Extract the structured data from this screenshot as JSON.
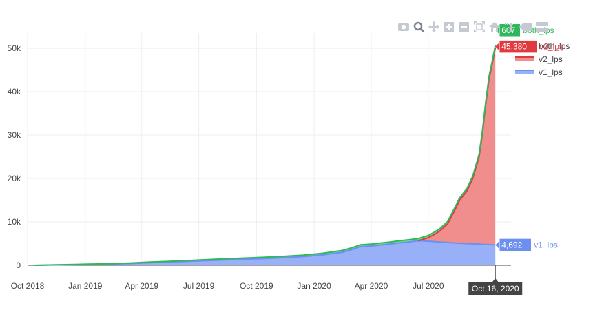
{
  "chart_data": {
    "type": "area",
    "stacked": true,
    "x_range": [
      "2018-10-01",
      "2020-11-10"
    ],
    "ylim": [
      0,
      53500
    ],
    "y_ticks": [
      0,
      10000,
      20000,
      30000,
      40000,
      50000
    ],
    "y_tick_labels": [
      "0",
      "10k",
      "20k",
      "30k",
      "40k",
      "50k"
    ],
    "x_ticks": [
      "2018-10-01",
      "2019-01-01",
      "2019-04-01",
      "2019-07-01",
      "2019-10-01",
      "2020-01-01",
      "2020-04-01",
      "2020-07-01"
    ],
    "x_tick_labels": [
      "Oct 2018",
      "Jan 2019",
      "Apr 2019",
      "Jul 2019",
      "Oct 2019",
      "Jan 2020",
      "Apr 2020",
      "Jul 2020"
    ],
    "grid": true,
    "legend_position": "top-right",
    "series": [
      {
        "name": "v1_lps",
        "color": "#6d8ff0",
        "fill": "#97b0f7",
        "points": [
          [
            "2018-10-12",
            0
          ],
          [
            "2018-11-15",
            80
          ],
          [
            "2018-12-15",
            150
          ],
          [
            "2019-01-15",
            220
          ],
          [
            "2019-02-15",
            300
          ],
          [
            "2019-03-15",
            420
          ],
          [
            "2019-04-15",
            600
          ],
          [
            "2019-05-15",
            750
          ],
          [
            "2019-06-15",
            900
          ],
          [
            "2019-07-15",
            1080
          ],
          [
            "2019-08-15",
            1250
          ],
          [
            "2019-09-15",
            1400
          ],
          [
            "2019-10-15",
            1550
          ],
          [
            "2019-11-15",
            1750
          ],
          [
            "2019-12-15",
            2000
          ],
          [
            "2020-01-15",
            2400
          ],
          [
            "2020-02-15",
            3000
          ],
          [
            "2020-03-01",
            3600
          ],
          [
            "2020-03-15",
            4300
          ],
          [
            "2020-04-01",
            4450
          ],
          [
            "2020-04-15",
            4650
          ],
          [
            "2020-05-01",
            4900
          ],
          [
            "2020-05-15",
            5150
          ],
          [
            "2020-06-01",
            5400
          ],
          [
            "2020-06-15",
            5650
          ],
          [
            "2020-07-01",
            5550
          ],
          [
            "2020-07-15",
            5400
          ],
          [
            "2020-08-01",
            5250
          ],
          [
            "2020-08-15",
            5100
          ],
          [
            "2020-09-01",
            5000
          ],
          [
            "2020-09-15",
            4900
          ],
          [
            "2020-10-01",
            4800
          ],
          [
            "2020-10-16",
            4692
          ]
        ]
      },
      {
        "name": "v2_lps",
        "color": "#e03a3e",
        "fill": "#f08e8e",
        "points": [
          [
            "2020-06-15",
            0
          ],
          [
            "2020-07-01",
            800
          ],
          [
            "2020-07-10",
            1600
          ],
          [
            "2020-07-20",
            2600
          ],
          [
            "2020-08-01",
            4300
          ],
          [
            "2020-08-10",
            6900
          ],
          [
            "2020-08-20",
            9900
          ],
          [
            "2020-09-01",
            12200
          ],
          [
            "2020-09-10",
            15100
          ],
          [
            "2020-09-20",
            20100
          ],
          [
            "2020-09-25",
            25100
          ],
          [
            "2020-10-01",
            32700
          ],
          [
            "2020-10-06",
            38200
          ],
          [
            "2020-10-11",
            41700
          ],
          [
            "2020-10-16",
            45380
          ]
        ]
      },
      {
        "name": "both_lps",
        "color": "#2eb85c",
        "fill": "#6fdc8c",
        "points": [
          [
            "2018-10-12",
            0
          ],
          [
            "2020-10-16",
            607
          ]
        ]
      }
    ],
    "hover": {
      "x_label": "Oct 16, 2020",
      "labels": [
        {
          "series": "both_lps",
          "value": "607",
          "name": "both_lps"
        },
        {
          "series": "v2_lps",
          "value": "45,380",
          "name": "v2_lps"
        },
        {
          "series": "v1_lps",
          "value": "4,692",
          "name": "v1_lps"
        }
      ]
    }
  },
  "legend": [
    {
      "name": "both_lps",
      "color": "#2eb85c"
    },
    {
      "name": "v2_lps",
      "color": "#e03a3e"
    },
    {
      "name": "v1_lps",
      "color": "#6d8ff0"
    }
  ],
  "modebar": [
    {
      "name": "camera-icon"
    },
    {
      "name": "zoom-icon"
    },
    {
      "name": "pan-icon"
    },
    {
      "name": "zoom-in-icon"
    },
    {
      "name": "zoom-out-icon"
    },
    {
      "name": "autoscale-icon"
    },
    {
      "name": "home-icon"
    },
    {
      "name": "spike-lines-icon"
    },
    {
      "name": "hover-closest-icon"
    },
    {
      "name": "hover-compare-icon"
    }
  ]
}
